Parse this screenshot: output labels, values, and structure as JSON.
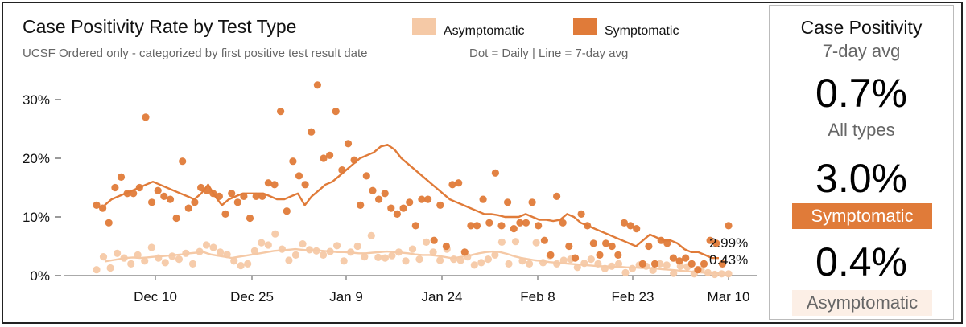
{
  "chart_data": {
    "type": "scatter",
    "title": "Case Positivity Rate by Test Type",
    "subtitle": "UCSF Ordered only - categorized by first positive test result date",
    "note": "Dot = Daily  |  Line = 7-day avg",
    "x_ticks": [
      "Dec 10",
      "Dec 25",
      "Jan 9",
      "Jan 24",
      "Feb 8",
      "Feb 23",
      "Mar 10"
    ],
    "y_ticks": [
      "0%",
      "10%",
      "20%",
      "30%"
    ],
    "ylim": [
      0,
      33
    ],
    "grid": false,
    "series": [
      {
        "name": "Asymptomatic",
        "color": "#F5C9A6",
        "points": [
          1.0,
          3.2,
          1.3,
          3.8,
          3.0,
          2.0,
          3.5,
          2.5,
          4.8,
          3.0,
          2.2,
          3.3,
          2.8,
          3.8,
          2.0,
          4.1,
          5.2,
          4.8,
          4.0,
          3.6,
          2.5,
          1.7,
          2.0,
          4.2,
          5.6,
          5.2,
          7.1,
          4.5,
          2.6,
          3.5,
          5.4,
          4.4,
          4.2,
          3.5,
          4.1,
          5.1,
          2.5,
          4.0,
          5.0,
          3.2,
          6.8,
          3.1,
          3.0,
          3.4,
          4.0,
          2.5,
          4.5,
          2.8,
          5.7,
          4.0,
          2.6,
          4.5,
          2.8,
          2.6,
          3.2,
          1.8,
          2.2,
          2.8,
          3.5,
          5.7,
          2.0,
          5.8,
          2.5,
          2.0,
          5.6,
          2.2,
          3.4,
          2.0,
          2.6,
          2.8,
          1.4,
          2.1,
          2.8,
          2.0,
          1.2,
          1.6,
          2.0,
          0.5,
          1.2,
          1.8,
          1.6,
          0.9,
          2.0,
          1.8,
          0.4,
          1.6,
          1.5,
          0.3,
          1.0,
          0.5,
          0.2,
          0.3,
          0.3
        ],
        "avg": [
          2.4,
          2.6,
          2.8,
          3.0,
          3.1,
          3.0,
          3.1,
          3.2,
          3.3,
          3.4,
          3.5,
          3.6,
          3.8,
          3.9,
          4.0,
          3.6,
          3.4,
          3.2,
          3.0,
          3.2,
          3.4,
          3.6,
          3.8,
          4.0,
          4.2,
          4.3,
          4.4,
          4.5,
          4.4,
          4.3,
          4.3,
          4.2,
          4.1,
          4.0,
          4.0,
          3.9,
          3.8,
          3.8,
          3.9,
          4.0,
          4.1,
          4.0,
          3.9,
          3.8,
          3.6,
          3.5,
          3.5,
          3.4,
          3.2,
          3.0,
          3.1,
          3.3,
          3.5,
          3.8,
          4.0,
          4.1,
          4.0,
          3.7,
          3.3,
          3.0,
          2.8,
          2.6,
          2.5,
          2.3,
          2.2,
          2.1,
          2.0,
          1.9,
          1.8,
          1.7,
          1.6,
          1.6,
          1.5,
          1.5,
          1.4,
          1.4,
          1.3,
          1.3,
          1.2,
          1.1,
          1.0,
          0.9,
          0.8,
          0.7,
          0.6,
          0.5,
          0.5,
          0.43
        ],
        "end_label": "0.43%"
      },
      {
        "name": "Symptomatic",
        "color": "#E07B39",
        "points": [
          12.0,
          11.5,
          9.0,
          15.0,
          16.8,
          14.0,
          14.0,
          15.0,
          27.0,
          12.5,
          14.5,
          13.5,
          13.0,
          9.8,
          19.5,
          11.5,
          12.5,
          15.0,
          14.5,
          14.0,
          13.5,
          10.5,
          14.0,
          12.5,
          13.5,
          9.8,
          13.5,
          13.5,
          15.8,
          15.5,
          28.0,
          11.0,
          19.5,
          17.0,
          15.5,
          24.5,
          32.5,
          20.0,
          20.5,
          28.0,
          18.0,
          22.5,
          19.7,
          12.0,
          17.0,
          14.5,
          13.0,
          14.0,
          11.5,
          10.5,
          11.5,
          12.5,
          8.5,
          13.0,
          13.0,
          6.0,
          12.0,
          5.0,
          15.5,
          15.8,
          4.0,
          8.5,
          8.5,
          13.0,
          9.0,
          17.5,
          8.5,
          12.5,
          8.0,
          9.0,
          9.0,
          12.5,
          8.5,
          6.0,
          3.5,
          13.5,
          9.0,
          5.0,
          3.0,
          10.5,
          8.5,
          5.5,
          3.5,
          5.5,
          5.0,
          3.5,
          9.0,
          8.5,
          8.0,
          2.0,
          5.0,
          2.0,
          6.0,
          5.5,
          3.0,
          2.5,
          3.0,
          2.0,
          1.0,
          2.0,
          6.0,
          5.5,
          2.0,
          8.5
        ],
        "avg": [
          12.0,
          13.0,
          13.5,
          14.0,
          14.5,
          15.0,
          15.5,
          16.0,
          15.5,
          15.0,
          14.5,
          14.0,
          13.5,
          13.0,
          14.0,
          15.5,
          13.5,
          12.0,
          13.0,
          13.5,
          14.0,
          14.0,
          14.0,
          14.0,
          13.5,
          13.0,
          13.0,
          13.5,
          14.0,
          12.0,
          13.5,
          14.5,
          15.5,
          16.0,
          17.0,
          18.0,
          19.0,
          20.0,
          20.5,
          21.0,
          22.0,
          22.3,
          21.5,
          20.0,
          19.0,
          18.0,
          17.0,
          16.0,
          15.0,
          14.0,
          13.0,
          12.5,
          12.0,
          11.5,
          11.0,
          10.5,
          10.5,
          10.3,
          10.0,
          10.0,
          10.0,
          10.5,
          10.0,
          9.5,
          9.5,
          9.3,
          9.5,
          10.5,
          10.0,
          9.0,
          8.5,
          8.0,
          7.5,
          7.0,
          6.5,
          6.0,
          5.5,
          5.0,
          6.0,
          7.0,
          6.5,
          6.0,
          6.0,
          5.5,
          4.5,
          4.0,
          4.0,
          3.5,
          3.0,
          2.99
        ],
        "end_label": "2.99%"
      }
    ]
  },
  "panel": {
    "heading": "Case Positivity",
    "subheading": "7-day avg",
    "all_value": "0.7%",
    "all_label": "All types",
    "sym_value": "3.0%",
    "sym_label": "Symptomatic",
    "asym_value": "0.4%",
    "asym_label": "Asymptomatic",
    "sym_tag_color": "#E07B39",
    "asym_tag_color": "#FCEFE6"
  }
}
